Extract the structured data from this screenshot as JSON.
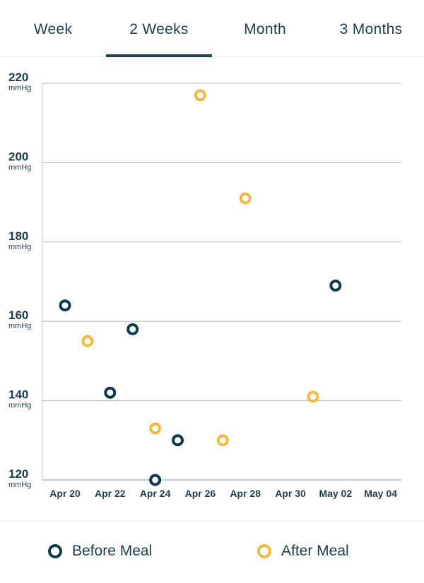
{
  "tabs": [
    {
      "label": "Week",
      "active": false
    },
    {
      "label": "2 Weeks",
      "active": true
    },
    {
      "label": "Month",
      "active": false
    },
    {
      "label": "3 Months",
      "active": false
    }
  ],
  "chart_data": {
    "type": "scatter",
    "y_unit": "mmHg",
    "ylim": [
      120,
      220
    ],
    "y_ticks": [
      120,
      140,
      160,
      180,
      200,
      220
    ],
    "x_categories": [
      "Apr 20",
      "Apr 21",
      "Apr 22",
      "Apr 23",
      "Apr 24",
      "Apr 25",
      "Apr 26",
      "Apr 27",
      "Apr 28",
      "Apr 29",
      "Apr 30",
      "May 01",
      "May 02",
      "May 03",
      "May 04"
    ],
    "x_tick_labels": [
      "Apr 20",
      "Apr 22",
      "Apr 24",
      "Apr 26",
      "Apr 28",
      "Apr 30",
      "May 02",
      "May 04"
    ],
    "grid": true,
    "legend_position": "bottom",
    "series": [
      {
        "name": "Before Meal",
        "color": "#0f3a4f",
        "points": [
          {
            "x": "Apr 20",
            "y": 164
          },
          {
            "x": "Apr 22",
            "y": 142
          },
          {
            "x": "Apr 23",
            "y": 158
          },
          {
            "x": "Apr 24",
            "y": 120
          },
          {
            "x": "Apr 25",
            "y": 130
          },
          {
            "x": "May 02",
            "y": 169
          }
        ]
      },
      {
        "name": "After Meal",
        "color": "#f5b942",
        "points": [
          {
            "x": "Apr 21",
            "y": 155
          },
          {
            "x": "Apr 24",
            "y": 133
          },
          {
            "x": "Apr 26",
            "y": 217
          },
          {
            "x": "Apr 27",
            "y": 130
          },
          {
            "x": "Apr 28",
            "y": 191
          },
          {
            "x": "May 01",
            "y": 141
          }
        ]
      }
    ]
  },
  "legend": [
    {
      "label": "Before Meal",
      "color": "#0f3a4f"
    },
    {
      "label": "After Meal",
      "color": "#f5b942"
    }
  ]
}
